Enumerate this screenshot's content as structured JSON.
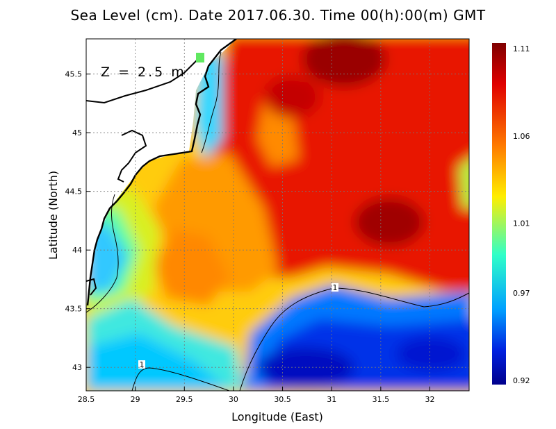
{
  "chart_data": {
    "type": "heatmap",
    "title": "Sea Level (cm). Date 2017.06.30. Time 00(h):00(m) GMT",
    "annotation": "Z = 2.5 m",
    "xlabel": "Longitude (East)",
    "ylabel": "Latitude (North)",
    "xlim": [
      28.5,
      32.4
    ],
    "ylim": [
      42.8,
      45.8
    ],
    "x_ticks": [
      "28.5",
      "29",
      "29.5",
      "30",
      "30.5",
      "31",
      "31.5",
      "32"
    ],
    "y_ticks": [
      "43",
      "43.5",
      "44",
      "44.5",
      "45",
      "45.5"
    ],
    "grid": true,
    "colorbar": {
      "min": 0.92,
      "max": 1.11,
      "tick_labels": [
        "1.11",
        "1.06",
        "1.01",
        "0.97",
        "0.92"
      ],
      "colormap": "jet"
    },
    "contour_labels": [
      "1",
      "1"
    ],
    "features": [
      {
        "name": "high sea level region",
        "lon": 31.5,
        "lat": 44.25,
        "value": 1.1
      },
      {
        "name": "high sea level region",
        "lon": 31.1,
        "lat": 45.6,
        "value": 1.11
      },
      {
        "name": "low sea level region",
        "lon": 30.8,
        "lat": 43.0,
        "value": 0.93
      },
      {
        "name": "low sea level region",
        "lon": 28.8,
        "lat": 43.9,
        "value": 0.98
      }
    ]
  }
}
